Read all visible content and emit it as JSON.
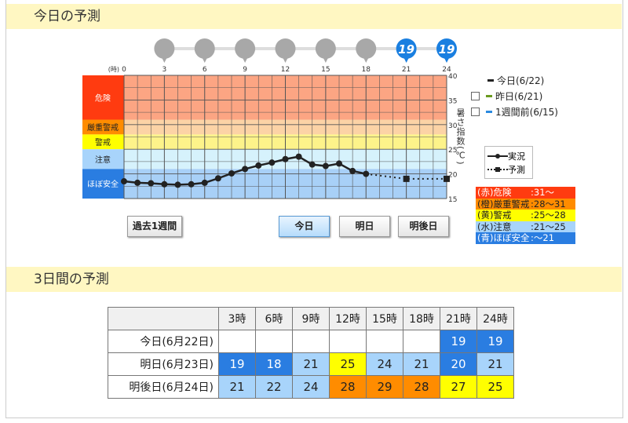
{
  "section1": {
    "title": "今日の予測"
  },
  "section2": {
    "title": "3日間の予測"
  },
  "chart_data": {
    "type": "line",
    "x_unit_label": "(時)",
    "x_ticks": [
      0,
      3,
      6,
      9,
      12,
      15,
      18,
      21,
      24
    ],
    "y_ticks": [
      15,
      20,
      25,
      30,
      35,
      40
    ],
    "ylim": [
      15,
      40
    ],
    "xlim": [
      0,
      24
    ],
    "ylabel": "暑さ指数(℃)",
    "bands": [
      {
        "label": "危険",
        "from": 31,
        "to": 40,
        "color": "#ff3b10",
        "fill": "#fca583"
      },
      {
        "label": "厳重警戒",
        "from": 28,
        "to": 31,
        "color": "#ff8c00",
        "fill": "#fcd3a6"
      },
      {
        "label": "警戒",
        "from": 25,
        "to": 28,
        "color": "#ffff00",
        "fill": "#fdf38a"
      },
      {
        "label": "注意",
        "from": 21,
        "to": 25,
        "color": "#a8d4fb",
        "fill": "#d6f2fc"
      },
      {
        "label": "ほぼ安全",
        "from": 15,
        "to": 21,
        "color": "#2a7de1",
        "fill": "#a8d0f7"
      }
    ],
    "series": [
      {
        "name": "実況",
        "style": "solid",
        "x": [
          0,
          1,
          2,
          3,
          4,
          5,
          6,
          7,
          8,
          9,
          10,
          11,
          12,
          13,
          14,
          15,
          16,
          17,
          18
        ],
        "y": [
          18.5,
          18.2,
          18.1,
          17.9,
          17.8,
          17.9,
          18.2,
          19.1,
          20.1,
          21,
          21.7,
          22.3,
          23,
          23.5,
          21.9,
          21.6,
          22.1,
          20.6,
          20
        ]
      },
      {
        "name": "予測",
        "style": "dotted",
        "x": [
          18,
          21,
          24
        ],
        "y": [
          20,
          19,
          19
        ]
      }
    ],
    "pins": [
      {
        "hour": 3,
        "value": ""
      },
      {
        "hour": 6,
        "value": ""
      },
      {
        "hour": 9,
        "value": ""
      },
      {
        "hour": 12,
        "value": ""
      },
      {
        "hour": 15,
        "value": ""
      },
      {
        "hour": 18,
        "value": ""
      },
      {
        "hour": 21,
        "value": "19"
      },
      {
        "hour": 24,
        "value": "19"
      }
    ]
  },
  "legend": {
    "today": "今日(6/22)",
    "yesterday": "昨日(6/21)",
    "week_ago": "1週間前(6/15)",
    "actual": "実況",
    "forecast": "予測",
    "colors": {
      "today": "#222222",
      "yesterday": "#6a9a1f",
      "week_ago": "#2a8ae0"
    }
  },
  "levels": [
    {
      "name": "(赤)危険",
      "range": ":31～",
      "bg": "#ff3b10",
      "fg": "#fff"
    },
    {
      "name": "(橙)厳重警戒",
      "range": ":28～31",
      "bg": "#ff8c00",
      "fg": "#222"
    },
    {
      "name": "(黄)警戒",
      "range": ":25～28",
      "bg": "#ffff00",
      "fg": "#222"
    },
    {
      "name": "(水)注意",
      "range": ":21～25",
      "bg": "#a8d4fb",
      "fg": "#222"
    },
    {
      "name": "(青)ほぼ安全",
      "range": ":～21",
      "bg": "#2a7de1",
      "fg": "#fff"
    }
  ],
  "buttons": {
    "past_week": "過去1週間",
    "today": "今日",
    "tomorrow": "明日",
    "day_after": "明後日"
  },
  "table": {
    "headers": [
      "3時",
      "6時",
      "9時",
      "12時",
      "15時",
      "18時",
      "21時",
      "24時"
    ],
    "rows": [
      {
        "label": "今日(6月22日)",
        "values": [
          "",
          "",
          "",
          "",
          "",
          "",
          "19",
          "19"
        ]
      },
      {
        "label": "明日(6月23日)",
        "values": [
          "19",
          "18",
          "21",
          "25",
          "24",
          "21",
          "20",
          "21"
        ]
      },
      {
        "label": "明後日(6月24日)",
        "values": [
          "21",
          "22",
          "24",
          "28",
          "29",
          "28",
          "27",
          "25"
        ]
      }
    ]
  }
}
